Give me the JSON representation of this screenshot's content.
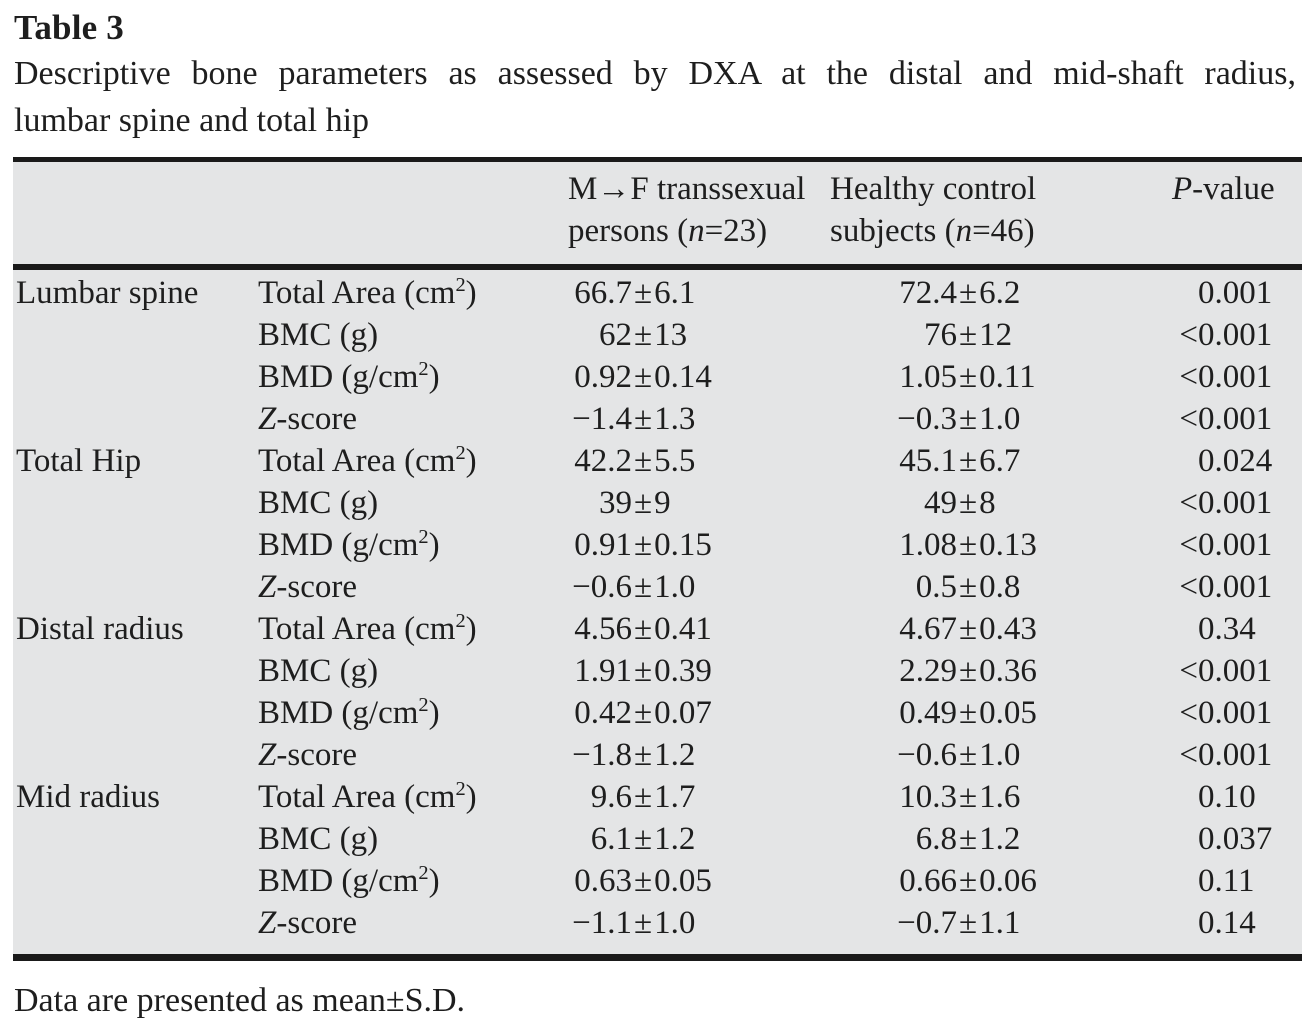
{
  "title": "Table 3",
  "caption": {
    "line1": "Descriptive bone parameters as assessed by DXA at the distal and mid-shaft radius,",
    "line2": "lumbar spine and total hip"
  },
  "pm_symbol": "±",
  "header": {
    "mf": [
      [
        {
          "t": "M→F transsexual"
        }
      ],
      [
        {
          "t": "persons ("
        },
        {
          "t": "n",
          "i": true
        },
        {
          "t": "=23)"
        }
      ]
    ],
    "hc": [
      [
        {
          "t": "Healthy control"
        }
      ],
      [
        {
          "t": "subjects ("
        },
        {
          "t": "n",
          "i": true
        },
        {
          "t": "=46)"
        }
      ]
    ],
    "p": [
      [
        {
          "t": "P",
          "i": true
        },
        {
          "t": "-value"
        }
      ]
    ]
  },
  "rows": [
    {
      "site": "Lumbar spine",
      "param": [
        {
          "t": "Total Area (cm"
        },
        {
          "t": "2",
          "sup": true
        },
        {
          "t": ")"
        }
      ],
      "mf": {
        "m": "66.7",
        "s": "6.1"
      },
      "hc": {
        "m": "72.4",
        "s": "6.2"
      },
      "p": "0.001"
    },
    {
      "site": "",
      "param": [
        {
          "t": "BMC (g)"
        }
      ],
      "mf": {
        "m": "62",
        "s": "13"
      },
      "hc": {
        "m": "76",
        "s": "12"
      },
      "p": "<0.001"
    },
    {
      "site": "",
      "param": [
        {
          "t": "BMD (g/cm"
        },
        {
          "t": "2",
          "sup": true
        },
        {
          "t": ")"
        }
      ],
      "mf": {
        "m": "0.92",
        "s": "0.14"
      },
      "hc": {
        "m": "1.05",
        "s": "0.11"
      },
      "p": "<0.001"
    },
    {
      "site": "",
      "param": [
        {
          "t": "Z",
          "i": true
        },
        {
          "t": "-score"
        }
      ],
      "mf": {
        "m": "−1.4",
        "s": "1.3"
      },
      "hc": {
        "m": "−0.3",
        "s": "1.0"
      },
      "p": "<0.001"
    },
    {
      "site": "Total Hip",
      "param": [
        {
          "t": "Total Area (cm"
        },
        {
          "t": "2",
          "sup": true
        },
        {
          "t": ")"
        }
      ],
      "mf": {
        "m": "42.2",
        "s": "5.5"
      },
      "hc": {
        "m": "45.1",
        "s": "6.7"
      },
      "p": "0.024"
    },
    {
      "site": "",
      "param": [
        {
          "t": "BMC (g)"
        }
      ],
      "mf": {
        "m": "39",
        "s": "9"
      },
      "hc": {
        "m": "49",
        "s": "8"
      },
      "p": "<0.001"
    },
    {
      "site": "",
      "param": [
        {
          "t": "BMD (g/cm"
        },
        {
          "t": "2",
          "sup": true
        },
        {
          "t": ")"
        }
      ],
      "mf": {
        "m": "0.91",
        "s": "0.15"
      },
      "hc": {
        "m": "1.08",
        "s": "0.13"
      },
      "p": "<0.001"
    },
    {
      "site": "",
      "param": [
        {
          "t": "Z",
          "i": true
        },
        {
          "t": "-score"
        }
      ],
      "mf": {
        "m": "−0.6",
        "s": "1.0"
      },
      "hc": {
        "m": "0.5",
        "s": "0.8"
      },
      "p": "<0.001"
    },
    {
      "site": "Distal radius",
      "param": [
        {
          "t": "Total Area (cm"
        },
        {
          "t": "2",
          "sup": true
        },
        {
          "t": ")"
        }
      ],
      "mf": {
        "m": "4.56",
        "s": "0.41"
      },
      "hc": {
        "m": "4.67",
        "s": "0.43"
      },
      "p": "0.34"
    },
    {
      "site": "",
      "param": [
        {
          "t": "BMC (g)"
        }
      ],
      "mf": {
        "m": "1.91",
        "s": "0.39"
      },
      "hc": {
        "m": "2.29",
        "s": "0.36"
      },
      "p": "<0.001"
    },
    {
      "site": "",
      "param": [
        {
          "t": "BMD (g/cm"
        },
        {
          "t": "2",
          "sup": true
        },
        {
          "t": ")"
        }
      ],
      "mf": {
        "m": "0.42",
        "s": "0.07"
      },
      "hc": {
        "m": "0.49",
        "s": "0.05"
      },
      "p": "<0.001"
    },
    {
      "site": "",
      "param": [
        {
          "t": "Z",
          "i": true
        },
        {
          "t": "-score"
        }
      ],
      "mf": {
        "m": "−1.8",
        "s": "1.2"
      },
      "hc": {
        "m": "−0.6",
        "s": "1.0"
      },
      "p": "<0.001"
    },
    {
      "site": "Mid radius",
      "param": [
        {
          "t": "Total Area (cm"
        },
        {
          "t": "2",
          "sup": true
        },
        {
          "t": ")"
        }
      ],
      "mf": {
        "m": "9.6",
        "s": "1.7"
      },
      "hc": {
        "m": "10.3",
        "s": "1.6"
      },
      "p": "0.10"
    },
    {
      "site": "",
      "param": [
        {
          "t": "BMC (g)"
        }
      ],
      "mf": {
        "m": "6.1",
        "s": "1.2"
      },
      "hc": {
        "m": "6.8",
        "s": "1.2"
      },
      "p": "0.037"
    },
    {
      "site": "",
      "param": [
        {
          "t": "BMD (g/cm"
        },
        {
          "t": "2",
          "sup": true
        },
        {
          "t": ")"
        }
      ],
      "mf": {
        "m": "0.63",
        "s": "0.05"
      },
      "hc": {
        "m": "0.66",
        "s": "0.06"
      },
      "p": "0.11"
    },
    {
      "site": "",
      "param": [
        {
          "t": "Z",
          "i": true
        },
        {
          "t": "-score"
        }
      ],
      "mf": {
        "m": "−1.1",
        "s": "1.0"
      },
      "hc": {
        "m": "−0.7",
        "s": "1.1"
      },
      "p": "0.14"
    }
  ],
  "footnote": "Data are presented as mean±S.D.",
  "colors": {
    "table_background": "#e4e5e6",
    "rule": "#1a1a1a",
    "text": "#1e1e1e",
    "page_background": "#ffffff"
  }
}
